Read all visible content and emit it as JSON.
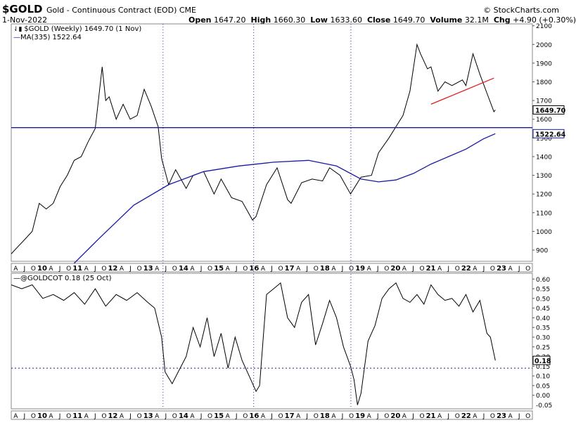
{
  "header": {
    "symbol": "$GOLD",
    "description": "Gold - Continuous Contract (EOD) CME",
    "date": "1-Nov-2022",
    "brand": "© StockCharts.com",
    "open_label": "Open",
    "open": "1647.20",
    "high_label": "High",
    "high": "1660.30",
    "low_label": "Low",
    "low": "1633.60",
    "close_label": "Close",
    "close": "1649.70",
    "volume_label": "Volume",
    "volume": "32.1M",
    "chg_label": "Chg",
    "chg": "+4.90 (+0.30%)"
  },
  "legend": {
    "price": "$GOLD (Weekly) 1649.70 (1 Nov)",
    "ma": "MA(335) 1522.64",
    "cot": "@GOLDCOT 0.18 (25 Oct)"
  },
  "colors": {
    "price": "#000000",
    "ma": "#1a1aa0",
    "support": "#1a1aa0",
    "trend": "#e02020",
    "grid_dots": "#3030c0",
    "cot_ref": "#1a1aa0"
  },
  "chart_data": [
    {
      "type": "line",
      "title": "$GOLD (Weekly)",
      "x_range": [
        2009.0,
        2023.9
      ],
      "ylim": [
        840,
        2110
      ],
      "y_ticks": [
        900,
        1000,
        1100,
        1200,
        1300,
        1400,
        1500,
        1600,
        1700,
        1800,
        1900,
        2000,
        2100
      ],
      "x_tick_labels": [
        "A",
        "J",
        "O",
        "10",
        "A",
        "J",
        "O",
        "11",
        "A",
        "J",
        "O",
        "12",
        "A",
        "J",
        "O",
        "13",
        "A",
        "J",
        "O",
        "14",
        "A",
        "J",
        "O",
        "15",
        "A",
        "J",
        "O",
        "16",
        "A",
        "J",
        "O",
        "17",
        "A",
        "J",
        "O",
        "18",
        "A",
        "J",
        "O",
        "19",
        "A",
        "J",
        "O",
        "20",
        "A",
        "J",
        "O",
        "21",
        "A",
        "J",
        "O",
        "22",
        "A",
        "J",
        "O",
        "23",
        "A",
        "J",
        "O"
      ],
      "value_labels": {
        "last": "1649.70",
        "ma_last": "1522.64"
      },
      "series": [
        {
          "name": "$GOLD (Weekly)",
          "x": [
            2009.0,
            2009.2,
            2009.4,
            2009.6,
            2009.8,
            2010.0,
            2010.2,
            2010.4,
            2010.6,
            2010.8,
            2011.0,
            2011.2,
            2011.4,
            2011.6,
            2011.7,
            2011.8,
            2012.0,
            2012.2,
            2012.4,
            2012.6,
            2012.8,
            2013.0,
            2013.2,
            2013.3,
            2013.5,
            2013.7,
            2014.0,
            2014.2,
            2014.5,
            2014.8,
            2015.0,
            2015.3,
            2015.6,
            2015.9,
            2016.0,
            2016.3,
            2016.6,
            2016.9,
            2017.0,
            2017.3,
            2017.6,
            2017.9,
            2018.1,
            2018.4,
            2018.7,
            2019.0,
            2019.3,
            2019.5,
            2019.8,
            2020.0,
            2020.2,
            2020.4,
            2020.6,
            2020.7,
            2020.9,
            2021.0,
            2021.2,
            2021.4,
            2021.6,
            2021.9,
            2022.0,
            2022.2,
            2022.4,
            2022.6,
            2022.8,
            2022.84
          ],
          "y": [
            880,
            920,
            960,
            1000,
            1150,
            1120,
            1150,
            1240,
            1300,
            1380,
            1400,
            1480,
            1550,
            1880,
            1700,
            1720,
            1600,
            1680,
            1600,
            1620,
            1760,
            1670,
            1560,
            1390,
            1250,
            1330,
            1230,
            1300,
            1320,
            1200,
            1280,
            1180,
            1160,
            1060,
            1080,
            1250,
            1340,
            1170,
            1150,
            1260,
            1280,
            1270,
            1340,
            1300,
            1200,
            1290,
            1300,
            1420,
            1500,
            1560,
            1620,
            1750,
            2000,
            1950,
            1870,
            1880,
            1750,
            1800,
            1780,
            1810,
            1780,
            1950,
            1840,
            1740,
            1640,
            1649.7
          ]
        },
        {
          "name": "MA(335)",
          "x": [
            2010.8,
            2011.5,
            2012.5,
            2013.5,
            2014.5,
            2015.5,
            2016.5,
            2017.5,
            2018.3,
            2019.0,
            2019.5,
            2020.0,
            2020.5,
            2021.0,
            2021.5,
            2022.0,
            2022.5,
            2022.84
          ],
          "y": [
            830,
            960,
            1140,
            1250,
            1320,
            1350,
            1370,
            1380,
            1350,
            1280,
            1265,
            1275,
            1310,
            1360,
            1400,
            1440,
            1495,
            1522.64
          ]
        },
        {
          "name": "support",
          "x": [
            2009.0,
            2023.9
          ],
          "y": [
            1555,
            1555
          ]
        },
        {
          "name": "trendline",
          "x": [
            2021.0,
            2022.8
          ],
          "y": [
            1680,
            1820
          ]
        }
      ]
    },
    {
      "type": "line",
      "title": "@GOLDCOT",
      "x_range": [
        2009.0,
        2023.9
      ],
      "ylim": [
        -0.07,
        0.63
      ],
      "y_ticks": [
        0.0,
        0.05,
        0.1,
        0.15,
        0.2,
        0.25,
        0.3,
        0.35,
        0.4,
        0.45,
        0.5,
        0.55,
        0.6
      ],
      "y_tick_labels": [
        "0.00",
        "0.05",
        "0.10",
        "0.15",
        "0.20",
        "0.25",
        "0.30",
        "0.35",
        "0.40",
        "0.45",
        "0.50",
        "0.55",
        "0.60"
      ],
      "extra_labels": [
        "-0.05"
      ],
      "reference_line": 0.14,
      "value_labels": {
        "last": "0.18"
      },
      "series": [
        {
          "name": "@GOLDCOT",
          "x": [
            2009.0,
            2009.3,
            2009.6,
            2009.9,
            2010.2,
            2010.5,
            2010.8,
            2011.1,
            2011.4,
            2011.7,
            2012.0,
            2012.3,
            2012.6,
            2012.9,
            2013.1,
            2013.3,
            2013.4,
            2013.6,
            2013.8,
            2014.0,
            2014.2,
            2014.4,
            2014.6,
            2014.8,
            2015.0,
            2015.2,
            2015.4,
            2015.6,
            2015.8,
            2016.0,
            2016.1,
            2016.3,
            2016.5,
            2016.7,
            2016.9,
            2017.1,
            2017.3,
            2017.5,
            2017.7,
            2017.9,
            2018.1,
            2018.3,
            2018.5,
            2018.7,
            2018.8,
            2018.9,
            2019.0,
            2019.2,
            2019.4,
            2019.6,
            2019.8,
            2020.0,
            2020.2,
            2020.4,
            2020.6,
            2020.8,
            2021.0,
            2021.2,
            2021.4,
            2021.6,
            2021.8,
            2022.0,
            2022.2,
            2022.4,
            2022.6,
            2022.7,
            2022.84
          ],
          "y": [
            0.57,
            0.55,
            0.57,
            0.5,
            0.52,
            0.49,
            0.53,
            0.47,
            0.55,
            0.46,
            0.52,
            0.49,
            0.53,
            0.48,
            0.45,
            0.3,
            0.12,
            0.06,
            0.13,
            0.2,
            0.35,
            0.25,
            0.4,
            0.2,
            0.32,
            0.14,
            0.3,
            0.18,
            0.1,
            0.02,
            0.05,
            0.52,
            0.55,
            0.58,
            0.4,
            0.35,
            0.48,
            0.52,
            0.26,
            0.37,
            0.49,
            0.4,
            0.25,
            0.15,
            0.08,
            -0.05,
            0.01,
            0.28,
            0.36,
            0.5,
            0.55,
            0.58,
            0.5,
            0.48,
            0.52,
            0.47,
            0.57,
            0.52,
            0.49,
            0.5,
            0.46,
            0.52,
            0.43,
            0.49,
            0.32,
            0.3,
            0.18
          ]
        }
      ]
    }
  ]
}
